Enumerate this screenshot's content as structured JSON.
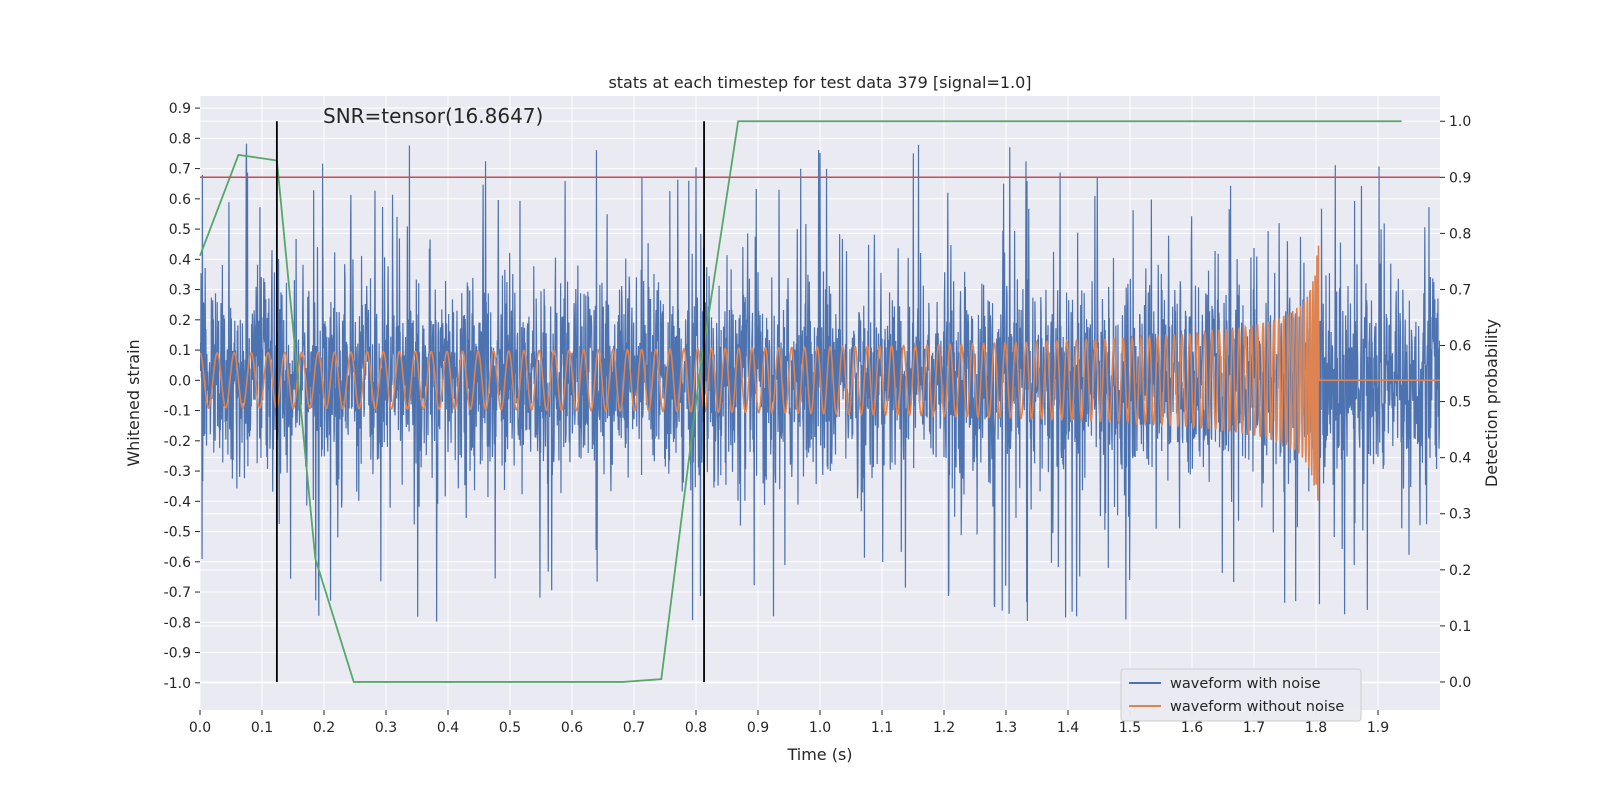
{
  "chart_data": {
    "type": "line",
    "title": "stats at each timestep for test data 379 [signal=1.0]",
    "xlabel": "Time (s)",
    "ylabel": "Whitened strain",
    "y2label": "Detection probability",
    "annotation": "SNR=tensor(16.8647)",
    "xlim": [
      0.0,
      2.0
    ],
    "ylim": [
      -1.09,
      0.94
    ],
    "y2lim": [
      -0.05,
      1.045
    ],
    "xticks": [
      "0.0",
      "0.1",
      "0.2",
      "0.3",
      "0.4",
      "0.5",
      "0.6",
      "0.7",
      "0.8",
      "0.9",
      "1.0",
      "1.1",
      "1.2",
      "1.3",
      "1.4",
      "1.5",
      "1.6",
      "1.7",
      "1.8",
      "1.9"
    ],
    "yticks": [
      "0.9",
      "0.8",
      "0.7",
      "0.6",
      "0.5",
      "0.4",
      "0.3",
      "0.2",
      "0.1",
      "0.0",
      "-0.1",
      "-0.2",
      "-0.3",
      "-0.4",
      "-0.5",
      "-0.6",
      "-0.7",
      "-0.8",
      "-0.9",
      "-1.0"
    ],
    "y2ticks": [
      "1.0",
      "0.9",
      "0.8",
      "0.7",
      "0.6",
      "0.5",
      "0.4",
      "0.3",
      "0.2",
      "0.1",
      "0.0"
    ],
    "threshold": 0.9,
    "vlines": [
      0.124,
      0.813
    ],
    "legend_position": "lower-right",
    "legend": [
      "waveform with noise",
      "waveform without noise"
    ],
    "colors": {
      "noisy": "#4c72b0",
      "clean": "#dd8452",
      "probability": "#55a868",
      "threshold": "#c44e52",
      "vline": "#000000",
      "plot_bg": "#eaeaf2",
      "grid": "#ffffff"
    },
    "series": [
      {
        "name": "Detection probability",
        "axis": "right",
        "x": [
          0.0,
          0.062,
          0.124,
          0.186,
          0.248,
          0.31,
          0.372,
          0.434,
          0.496,
          0.558,
          0.62,
          0.682,
          0.744,
          0.806,
          0.868,
          0.93,
          0.992,
          1.054,
          1.116,
          1.178,
          1.24,
          1.302,
          1.364,
          1.426,
          1.488,
          1.55,
          1.612,
          1.674,
          1.736,
          1.798,
          1.86,
          1.922,
          1.938
        ],
        "values": [
          0.76,
          0.94,
          0.93,
          0.22,
          0.0,
          0.0,
          0.0,
          0.0,
          0.0,
          0.0,
          0.0,
          0.0,
          0.005,
          0.55,
          1.0,
          1.0,
          1.0,
          1.0,
          1.0,
          1.0,
          1.0,
          1.0,
          1.0,
          1.0,
          1.0,
          1.0,
          1.0,
          1.0,
          1.0,
          1.0,
          1.0,
          1.0,
          1.0
        ]
      },
      {
        "name": "waveform with noise",
        "axis": "left",
        "generated": "dense whitened noise trace, 0.0–2.0 s, amplitude mostly within ±0.4 with spikes to 0.84 and -0.98"
      },
      {
        "name": "waveform without noise",
        "axis": "left",
        "generated": "chirp 0.0–1.805 s, amplitude ~0.09 rising to ~0.47 at merger near 1.8 s, then 0.0"
      }
    ]
  }
}
